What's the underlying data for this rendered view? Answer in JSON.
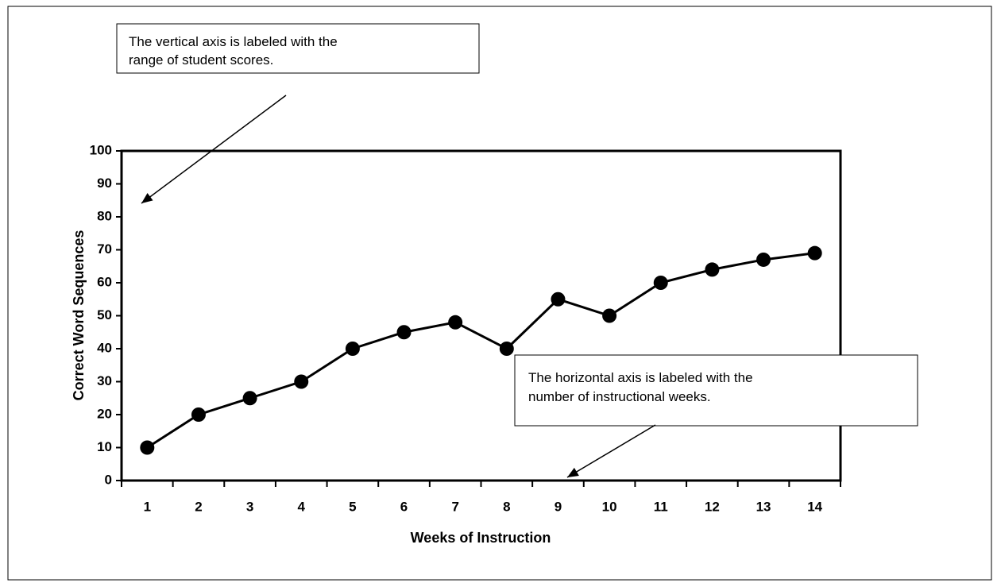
{
  "chart_data": {
    "type": "line",
    "x_label": "Weeks of Instruction",
    "y_label": "Correct Word Sequences",
    "categories": [
      "1",
      "2",
      "3",
      "4",
      "5",
      "6",
      "7",
      "8",
      "9",
      "10",
      "11",
      "12",
      "13",
      "14"
    ],
    "values": [
      10,
      20,
      25,
      30,
      40,
      45,
      48,
      40,
      55,
      50,
      60,
      64,
      67,
      69
    ],
    "color": "#000000",
    "ylim": [
      0,
      100
    ],
    "yticks": [
      0,
      10,
      20,
      30,
      40,
      50,
      60,
      70,
      80,
      90,
      100
    ],
    "annotations": [
      {
        "lines": [
          "The vertical axis is labeled with the",
          "range of student scores."
        ]
      },
      {
        "lines": [
          "The horizontal axis is labeled with the",
          "number of instructional weeks."
        ]
      }
    ]
  }
}
